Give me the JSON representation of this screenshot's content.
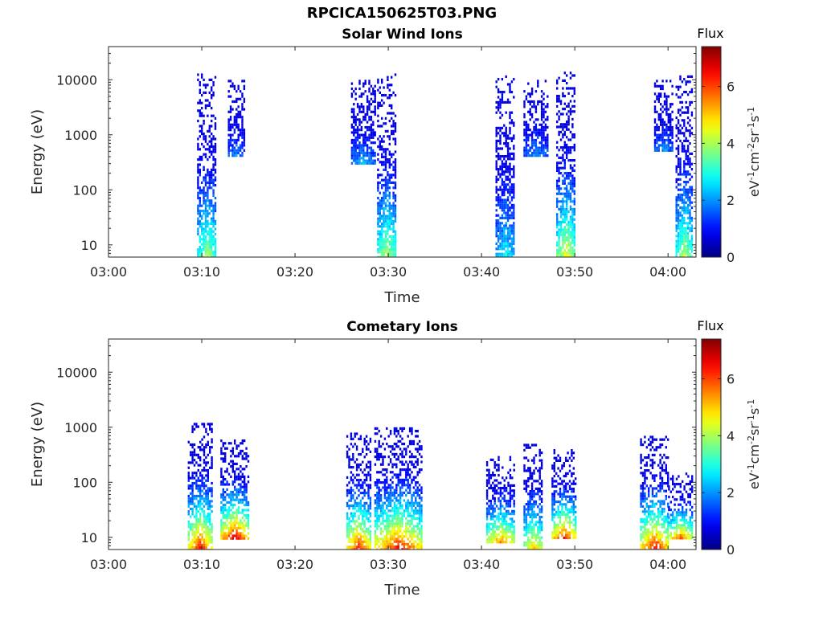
{
  "figure": {
    "title": "RPCICA150625T03.PNG"
  },
  "chart_data": [
    {
      "type": "heatmap",
      "title": "Solar Wind Ions",
      "xlabel": "Time",
      "ylabel": "Energy (eV)",
      "xlim": [
        "03:00",
        "04:03"
      ],
      "ylim": [
        6,
        40000
      ],
      "yscale": "log",
      "x_ticks": [
        "03:00",
        "03:10",
        "03:20",
        "03:30",
        "03:40",
        "03:50",
        "04:00"
      ],
      "y_ticks": [
        "10",
        "100",
        "1000",
        "10000"
      ],
      "colorbar": {
        "label": "Flux",
        "units": "eV-1cm-2sr-1s-1",
        "range": [
          0,
          7.4
        ],
        "ticks": [
          "0",
          "2",
          "4",
          "6"
        ]
      },
      "bursts": [
        {
          "start": "03:09.5",
          "end": "03:11.5",
          "e_min": 6,
          "e_max": 13000,
          "peak_flux": 4.6
        },
        {
          "start": "03:12.8",
          "end": "03:14.5",
          "e_min": 400,
          "e_max": 10000,
          "peak_flux": 2.6
        },
        {
          "start": "03:28.8",
          "end": "03:30.8",
          "e_min": 6,
          "e_max": 13000,
          "peak_flux": 4.8
        },
        {
          "start": "03:26.0",
          "end": "03:28.5",
          "e_min": 300,
          "e_max": 10000,
          "peak_flux": 2.8
        },
        {
          "start": "03:41.5",
          "end": "03:43.5",
          "e_min": 6,
          "e_max": 12000,
          "peak_flux": 3.4
        },
        {
          "start": "03:44.5",
          "end": "03:47.0",
          "e_min": 400,
          "e_max": 10000,
          "peak_flux": 2.6
        },
        {
          "start": "03:48.0",
          "end": "03:50.0",
          "e_min": 6,
          "e_max": 14000,
          "peak_flux": 5.2
        },
        {
          "start": "03:58.5",
          "end": "04:00.5",
          "e_min": 500,
          "e_max": 10000,
          "peak_flux": 2.6
        },
        {
          "start": "04:00.8",
          "end": "04:02.5",
          "e_min": 6,
          "e_max": 12000,
          "peak_flux": 4.8
        }
      ]
    },
    {
      "type": "heatmap",
      "title": "Cometary Ions",
      "xlabel": "Time",
      "ylabel": "Energy (eV)",
      "xlim": [
        "03:00",
        "04:03"
      ],
      "ylim": [
        6,
        40000
      ],
      "yscale": "log",
      "x_ticks": [
        "03:00",
        "03:10",
        "03:20",
        "03:30",
        "03:40",
        "03:50",
        "04:00"
      ],
      "y_ticks": [
        "10",
        "100",
        "1000",
        "10000"
      ],
      "colorbar": {
        "label": "Flux",
        "units": "eV-1cm-2sr-1s-1",
        "range": [
          0,
          7.4
        ],
        "ticks": [
          "0",
          "2",
          "4",
          "6"
        ]
      },
      "bursts": [
        {
          "start": "03:08.5",
          "end": "03:11.0",
          "e_min": 6,
          "e_max": 1200,
          "peak_flux": 7.2
        },
        {
          "start": "03:12.0",
          "end": "03:15.0",
          "e_min": 10,
          "e_max": 600,
          "peak_flux": 7.3
        },
        {
          "start": "03:25.5",
          "end": "03:28.0",
          "e_min": 6,
          "e_max": 800,
          "peak_flux": 7.2
        },
        {
          "start": "03:28.5",
          "end": "03:33.5",
          "e_min": 6,
          "e_max": 1000,
          "peak_flux": 7.3
        },
        {
          "start": "03:40.5",
          "end": "03:43.5",
          "e_min": 8,
          "e_max": 300,
          "peak_flux": 6.4
        },
        {
          "start": "03:44.5",
          "end": "03:46.5",
          "e_min": 6,
          "e_max": 500,
          "peak_flux": 6.0
        },
        {
          "start": "03:47.5",
          "end": "03:50.0",
          "e_min": 10,
          "e_max": 400,
          "peak_flux": 7.0
        },
        {
          "start": "03:57.0",
          "end": "04:00.0",
          "e_min": 6,
          "e_max": 700,
          "peak_flux": 7.4
        },
        {
          "start": "04:00.0",
          "end": "04:02.5",
          "e_min": 10,
          "e_max": 150,
          "peak_flux": 6.5
        }
      ]
    }
  ]
}
